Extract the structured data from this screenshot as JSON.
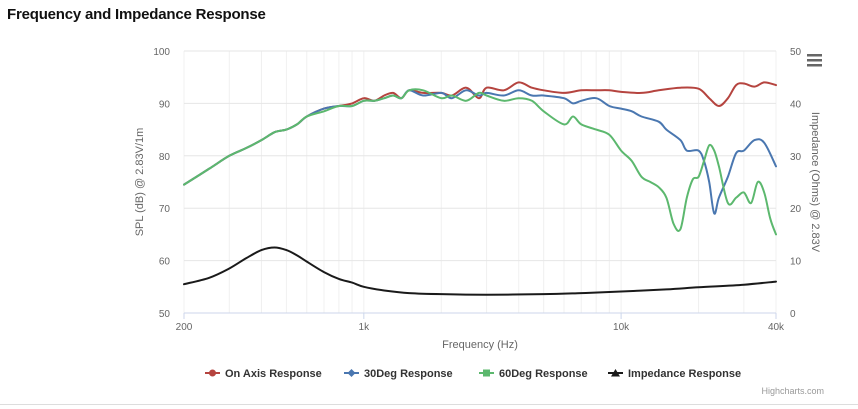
{
  "page": {
    "title": "Frequency and Impedance Response"
  },
  "chart_data": {
    "type": "line",
    "xlabel": "Frequency (Hz)",
    "x_scale": "log",
    "xlim": [
      200,
      40000
    ],
    "x_ticks": [
      200,
      1000,
      10000,
      40000
    ],
    "x_tick_labels": [
      "200",
      "1k",
      "10k",
      "40k"
    ],
    "y_axes": [
      {
        "id": "spl",
        "label": "SPL (dB) @ 2.83V/1m",
        "ylim": [
          50,
          100
        ],
        "ticks": [
          50,
          60,
          70,
          80,
          90,
          100
        ],
        "tick_labels": [
          "50",
          "60",
          "70",
          "80",
          "90",
          "100"
        ]
      },
      {
        "id": "impedance",
        "label": "Impedance (Ohms) @ 2.83V",
        "ylim": [
          0,
          50
        ],
        "ticks": [
          0,
          10,
          20,
          30,
          40,
          50
        ],
        "tick_labels": [
          "0",
          "10",
          "20",
          "30",
          "40",
          "50"
        ]
      }
    ],
    "grid": true,
    "legend": "bottom-center",
    "series": [
      {
        "name": "On Axis Response",
        "axis": "spl",
        "color": "#b5443f",
        "marker": "circle",
        "points": [
          [
            200,
            74.5
          ],
          [
            250,
            77.5
          ],
          [
            300,
            80
          ],
          [
            350,
            81.5
          ],
          [
            400,
            83
          ],
          [
            450,
            84.5
          ],
          [
            500,
            85
          ],
          [
            550,
            86
          ],
          [
            600,
            87.5
          ],
          [
            700,
            89
          ],
          [
            800,
            89.5
          ],
          [
            900,
            90
          ],
          [
            1000,
            91
          ],
          [
            1100,
            90.5
          ],
          [
            1200,
            91.5
          ],
          [
            1300,
            92
          ],
          [
            1400,
            91
          ],
          [
            1500,
            92.5
          ],
          [
            1700,
            92
          ],
          [
            2000,
            92
          ],
          [
            2200,
            91.5
          ],
          [
            2500,
            93
          ],
          [
            2800,
            91
          ],
          [
            3000,
            93
          ],
          [
            3500,
            92.5
          ],
          [
            4000,
            94
          ],
          [
            4500,
            93
          ],
          [
            5000,
            92.5
          ],
          [
            6000,
            92
          ],
          [
            7000,
            92.5
          ],
          [
            8000,
            92.5
          ],
          [
            9000,
            92.5
          ],
          [
            10000,
            92.2
          ],
          [
            12000,
            92
          ],
          [
            14000,
            92.5
          ],
          [
            17000,
            93
          ],
          [
            20000,
            92.8
          ],
          [
            22000,
            91
          ],
          [
            24000,
            89.5
          ],
          [
            26000,
            91
          ],
          [
            28000,
            93.5
          ],
          [
            30000,
            93.8
          ],
          [
            33000,
            93.2
          ],
          [
            36000,
            94
          ],
          [
            40000,
            93.5
          ]
        ]
      },
      {
        "name": "30Deg Response",
        "axis": "spl",
        "color": "#4a77b0",
        "marker": "diamond",
        "points": [
          [
            200,
            74.5
          ],
          [
            250,
            77.5
          ],
          [
            300,
            80
          ],
          [
            350,
            81.5
          ],
          [
            400,
            83
          ],
          [
            450,
            84.5
          ],
          [
            500,
            85
          ],
          [
            550,
            86
          ],
          [
            600,
            87.5
          ],
          [
            700,
            89
          ],
          [
            800,
            89.5
          ],
          [
            900,
            89.5
          ],
          [
            1000,
            90.5
          ],
          [
            1100,
            90.5
          ],
          [
            1200,
            91
          ],
          [
            1300,
            91.5
          ],
          [
            1400,
            91
          ],
          [
            1500,
            92.5
          ],
          [
            1700,
            91.5
          ],
          [
            2000,
            92
          ],
          [
            2200,
            91
          ],
          [
            2500,
            92.5
          ],
          [
            2800,
            91.5
          ],
          [
            3000,
            92
          ],
          [
            3500,
            91.5
          ],
          [
            4000,
            92.5
          ],
          [
            4500,
            91.5
          ],
          [
            5000,
            91.5
          ],
          [
            6000,
            91
          ],
          [
            6500,
            90
          ],
          [
            7000,
            90.5
          ],
          [
            8000,
            91
          ],
          [
            9000,
            89.5
          ],
          [
            10000,
            89
          ],
          [
            11000,
            88.5
          ],
          [
            12000,
            87.5
          ],
          [
            14000,
            86.5
          ],
          [
            15000,
            85
          ],
          [
            17000,
            83
          ],
          [
            18000,
            81
          ],
          [
            20000,
            81
          ],
          [
            21000,
            79
          ],
          [
            22000,
            75
          ],
          [
            23000,
            69
          ],
          [
            24000,
            72
          ],
          [
            26000,
            76
          ],
          [
            28000,
            80.5
          ],
          [
            30000,
            81
          ],
          [
            33000,
            83
          ],
          [
            36000,
            82.5
          ],
          [
            40000,
            78
          ]
        ]
      },
      {
        "name": "60Deg Response",
        "axis": "spl",
        "color": "#5cb86e",
        "marker": "square",
        "points": [
          [
            200,
            74.5
          ],
          [
            250,
            77.5
          ],
          [
            300,
            80
          ],
          [
            350,
            81.5
          ],
          [
            400,
            83
          ],
          [
            450,
            84.5
          ],
          [
            500,
            85
          ],
          [
            550,
            86
          ],
          [
            600,
            87.5
          ],
          [
            700,
            88.5
          ],
          [
            800,
            89.5
          ],
          [
            900,
            89.5
          ],
          [
            1000,
            90.5
          ],
          [
            1100,
            90.5
          ],
          [
            1200,
            91
          ],
          [
            1300,
            91.5
          ],
          [
            1400,
            91
          ],
          [
            1500,
            92.5
          ],
          [
            1700,
            92.5
          ],
          [
            2000,
            91
          ],
          [
            2200,
            91.5
          ],
          [
            2500,
            90.5
          ],
          [
            2800,
            92
          ],
          [
            3000,
            91.5
          ],
          [
            3500,
            90.5
          ],
          [
            4000,
            91
          ],
          [
            4500,
            90.5
          ],
          [
            5000,
            88.5
          ],
          [
            6000,
            86
          ],
          [
            6500,
            87.5
          ],
          [
            7000,
            86
          ],
          [
            8000,
            85
          ],
          [
            9000,
            84
          ],
          [
            10000,
            81
          ],
          [
            11000,
            79
          ],
          [
            12000,
            76
          ],
          [
            13000,
            75
          ],
          [
            14000,
            74
          ],
          [
            15000,
            72
          ],
          [
            16000,
            67
          ],
          [
            17000,
            66
          ],
          [
            18000,
            72
          ],
          [
            19000,
            75.5
          ],
          [
            20000,
            76
          ],
          [
            21000,
            79
          ],
          [
            22000,
            82
          ],
          [
            23000,
            81
          ],
          [
            24000,
            78
          ],
          [
            26000,
            71
          ],
          [
            28000,
            72
          ],
          [
            30000,
            73
          ],
          [
            32000,
            71
          ],
          [
            34000,
            75
          ],
          [
            36000,
            73
          ],
          [
            38000,
            68
          ],
          [
            40000,
            65
          ]
        ]
      },
      {
        "name": "Impedance Response",
        "axis": "impedance",
        "color": "#1a1a1a",
        "marker": "triangle",
        "points": [
          [
            200,
            5.5
          ],
          [
            250,
            6.7
          ],
          [
            300,
            8.5
          ],
          [
            350,
            10.5
          ],
          [
            400,
            12
          ],
          [
            450,
            12.5
          ],
          [
            500,
            12
          ],
          [
            550,
            11
          ],
          [
            600,
            9.8
          ],
          [
            700,
            7.8
          ],
          [
            800,
            6.5
          ],
          [
            900,
            5.8
          ],
          [
            1000,
            5
          ],
          [
            1200,
            4.3
          ],
          [
            1500,
            3.8
          ],
          [
            2000,
            3.6
          ],
          [
            3000,
            3.5
          ],
          [
            5000,
            3.6
          ],
          [
            7000,
            3.8
          ],
          [
            10000,
            4.1
          ],
          [
            15000,
            4.5
          ],
          [
            20000,
            4.9
          ],
          [
            30000,
            5.4
          ],
          [
            40000,
            6
          ]
        ]
      }
    ]
  },
  "credits": {
    "text": "Highcharts.com"
  },
  "menu": {
    "icon": "hamburger-menu-icon"
  }
}
